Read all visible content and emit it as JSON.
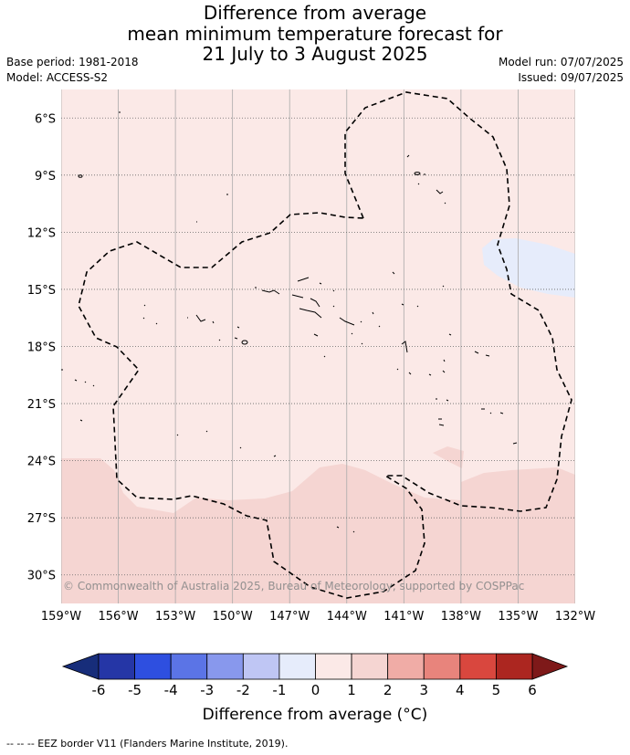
{
  "header": {
    "title_lines": [
      "Difference from average",
      "mean minimum temperature forecast for",
      "21 July to 3 August 2025"
    ],
    "base_period": "Base period: 1981-2018",
    "model": "Model: ACCESS-S2",
    "model_run": "Model run: 07/07/2025",
    "issued": "Issued: 09/07/2025"
  },
  "map": {
    "lon_range": [
      -159,
      -132
    ],
    "lat_range": [
      -31.5,
      -4.5
    ],
    "lon_ticks": [
      -159,
      -156,
      -153,
      -150,
      -147,
      -144,
      -141,
      -138,
      -135,
      -132
    ],
    "lon_tick_labels": [
      "159°W",
      "156°W",
      "153°W",
      "150°W",
      "147°W",
      "144°W",
      "141°W",
      "138°W",
      "135°W",
      "132°W"
    ],
    "lat_ticks": [
      -6,
      -9,
      -12,
      -15,
      -18,
      -21,
      -24,
      -27,
      -30
    ],
    "lat_tick_labels": [
      "6°S",
      "9°S",
      "12°S",
      "15°S",
      "18°S",
      "21°S",
      "24°S",
      "27°S",
      "30°S"
    ],
    "copyright": "© Commonwealth of Australia 2025, Bureau of Meteorology, supported by COSPPac",
    "background_class_color": "#fbe9e7",
    "regions": [
      {
        "range": "1 to 2",
        "color": "#f5d5d2",
        "area": "south of about 25°S"
      },
      {
        "range": "-1 to 0",
        "color": "#e6ecfb",
        "area": "near 13°S to 15°S, east of 136°W"
      },
      {
        "range": "1 to 2",
        "color": "#f5d5d2",
        "area": "small patch near 24°S, 139°W"
      }
    ],
    "eez_border_style": "dashed black"
  },
  "colorbar": {
    "tick_labels": [
      "-6",
      "-5",
      "-4",
      "-3",
      "-2",
      "-1",
      "0",
      "1",
      "2",
      "3",
      "4",
      "5",
      "6"
    ],
    "segment_colors": [
      "#2536a6",
      "#2e4fe0",
      "#5b74e6",
      "#8898ed",
      "#bfc6f4",
      "#e6ecfb",
      "#fbe9e7",
      "#f5d5d2",
      "#f0aca6",
      "#e8847c",
      "#d9473e",
      "#ac2620"
    ],
    "low_extend_color": "#172d7a",
    "high_extend_color": "#7e1919",
    "label": "Difference from average (°C)"
  },
  "footnote": "-- -- -- EEZ border V11 (Flanders Marine Institute, 2019)."
}
